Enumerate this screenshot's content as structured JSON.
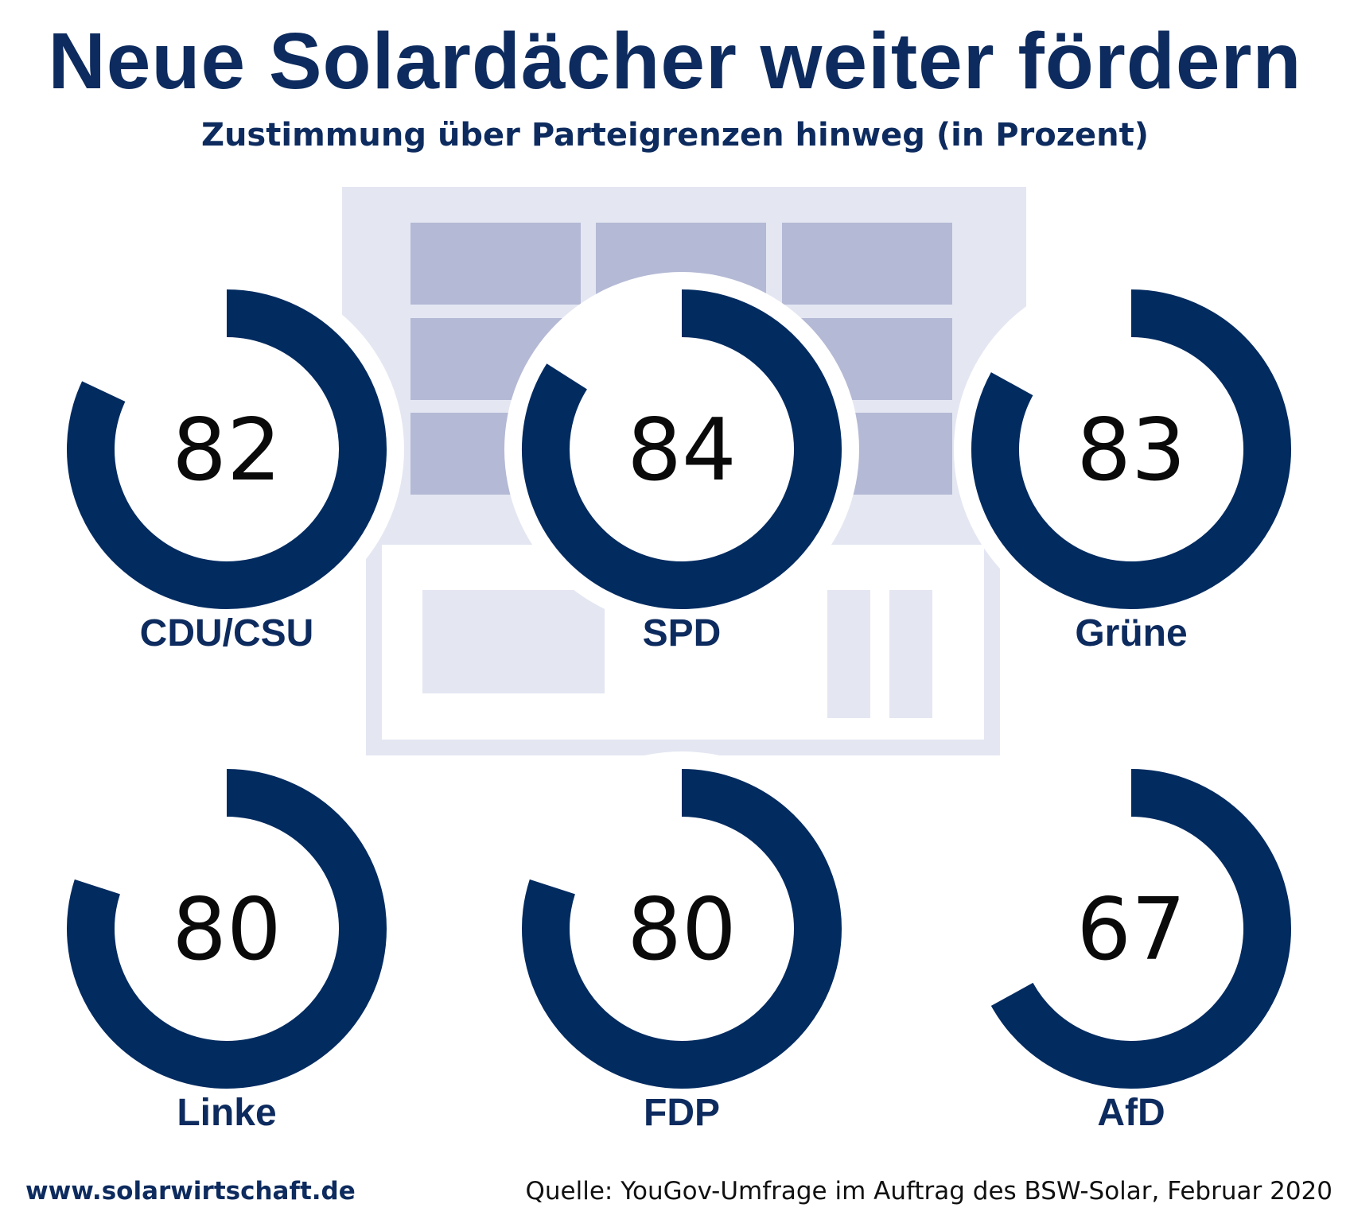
{
  "title": "Neue Solardächer weiter fördern",
  "subtitle": "Zustimmung über Parteigrenzen hinweg (in Prozent)",
  "footer": {
    "url": "www.solarwirtschaft.de",
    "source": "Quelle: YouGov-Umfrage im Auftrag des BSW-Solar, Februar 2020"
  },
  "colors": {
    "ring": "#022b60",
    "number": "#0a0a0a",
    "label": "#0d2b5e",
    "building_light": "#e4e7f2",
    "building_panel": "#b4b9d5"
  },
  "chart_data": {
    "type": "donut",
    "title": "Neue Solardächer weiter fördern",
    "subtitle": "Zustimmung über Parteigrenzen hinweg (in Prozent)",
    "unit": "%",
    "max": 100,
    "categories": [
      "CDU/CSU",
      "SPD",
      "Grüne",
      "Linke",
      "FDP",
      "AfD"
    ],
    "values": [
      82,
      84,
      83,
      80,
      80,
      67
    ]
  }
}
